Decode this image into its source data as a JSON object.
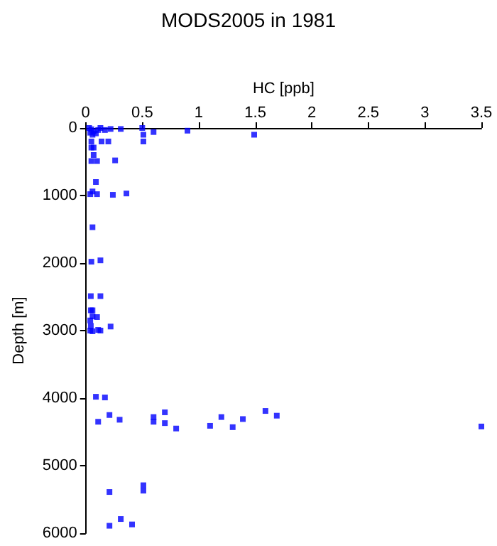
{
  "chart_data": {
    "type": "scatter",
    "title": "MODS2005 in 1981",
    "xlabel": "HC [ppb]",
    "ylabel": "Depth [m]",
    "xlim": [
      0,
      3.5
    ],
    "xticks": [
      0,
      0.5,
      1,
      1.5,
      2,
      2.5,
      3,
      3.5
    ],
    "ylim": [
      6000,
      0
    ],
    "yticks": [
      0,
      1000,
      2000,
      3000,
      4000,
      5000,
      6000
    ],
    "grid": false,
    "marker": "square",
    "series": [
      {
        "color": "#0000ff",
        "x": [
          0.03,
          0.05,
          0.07,
          0.09,
          0.11,
          0.13,
          0.04,
          0.06,
          0.17,
          0.22,
          0.31,
          0.5,
          0.51,
          0.51,
          0.6,
          0.9,
          1.49,
          0.05,
          0.14,
          0.2,
          0.05,
          0.07,
          0.07,
          0.05,
          0.1,
          0.26,
          0.09,
          0.04,
          0.06,
          0.1,
          0.24,
          0.36,
          0.06,
          0.05,
          0.13,
          0.045,
          0.13,
          0.045,
          0.06,
          0.06,
          0.1,
          0.04,
          0.045,
          0.04,
          0.06,
          0.11,
          0.13,
          0.22,
          0.09,
          0.17,
          0.21,
          0.11,
          0.3,
          0.6,
          0.6,
          0.7,
          0.7,
          0.8,
          1.1,
          1.2,
          1.3,
          1.39,
          1.59,
          1.69,
          3.5,
          0.51,
          0.51,
          0.21,
          0.31,
          0.21,
          0.41
        ],
        "values": [
          0,
          20,
          50,
          80,
          30,
          0,
          70,
          100,
          30,
          15,
          15,
          0,
          100,
          200,
          60,
          40,
          100,
          200,
          200,
          200,
          290,
          290,
          400,
          490,
          490,
          480,
          800,
          980,
          940,
          980,
          990,
          970,
          1470,
          1980,
          1960,
          2490,
          2490,
          2700,
          2700,
          2790,
          2800,
          2850,
          2930,
          3000,
          3010,
          2990,
          3000,
          2940,
          3980,
          3990,
          4250,
          4350,
          4320,
          4280,
          4350,
          4210,
          4370,
          4450,
          4410,
          4280,
          4430,
          4310,
          4190,
          4260,
          4420,
          5290,
          5370,
          5390,
          5790,
          5890,
          5870
        ]
      }
    ]
  }
}
